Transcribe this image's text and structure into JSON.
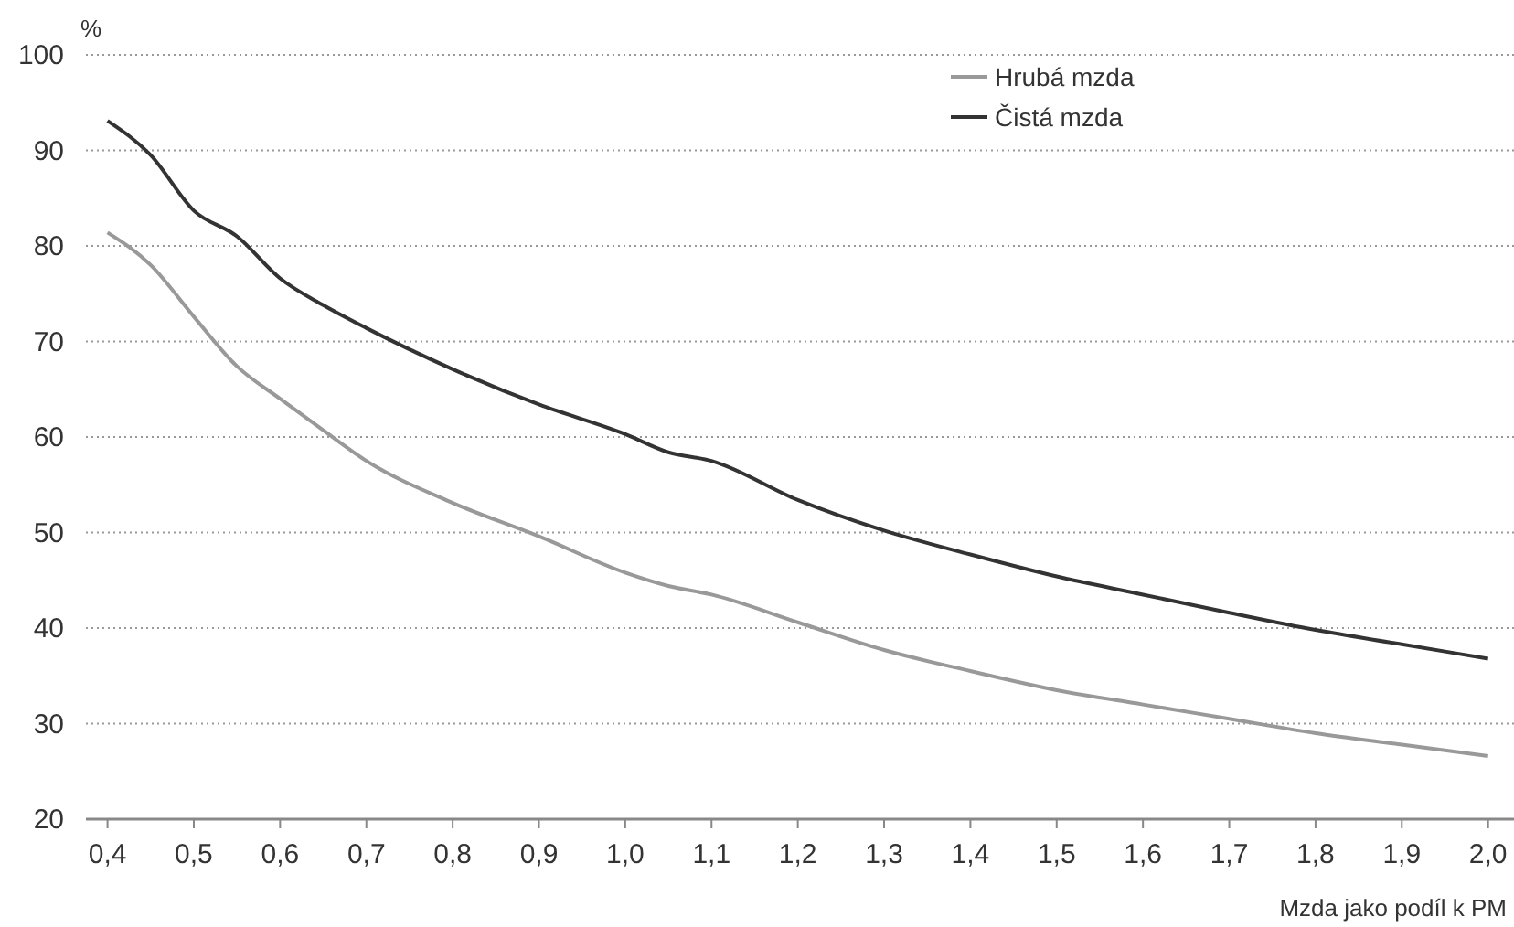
{
  "chart_data": {
    "type": "line",
    "ylabel": "%",
    "xlabel": "Mzda jako podíl k PM",
    "x": [
      0.4,
      0.45,
      0.5,
      0.55,
      0.6,
      0.65,
      0.7,
      0.8,
      0.9,
      1.0,
      1.05,
      1.1,
      1.2,
      1.3,
      1.4,
      1.5,
      1.6,
      1.7,
      1.8,
      1.9,
      2.0
    ],
    "series": [
      {
        "name": "Hrubá mzda",
        "color": "#999999",
        "values": [
          81.4,
          78,
          72.6,
          67.4,
          64,
          60.7,
          57.5,
          53.1,
          49.6,
          45.8,
          44.4,
          43.5,
          40.6,
          37.7,
          35.5,
          33.5,
          32,
          30.5,
          29,
          27.8,
          26.6
        ]
      },
      {
        "name": "Čistá mzda",
        "color": "#333333",
        "values": [
          93.1,
          89.5,
          83.7,
          81,
          76.6,
          73.8,
          71.4,
          67.1,
          63.4,
          60.3,
          58.4,
          57.5,
          53.4,
          50.2,
          47.7,
          45.4,
          43.5,
          41.6,
          39.8,
          38.3,
          36.8
        ]
      }
    ],
    "xlim": [
      0.375,
      2.03
    ],
    "xticks": [
      {
        "value": 0.4,
        "label": "0,4"
      },
      {
        "value": 0.5,
        "label": "0,5"
      },
      {
        "value": 0.6,
        "label": "0,6"
      },
      {
        "value": 0.7,
        "label": "0,7"
      },
      {
        "value": 0.8,
        "label": "0,8"
      },
      {
        "value": 0.9,
        "label": "0,9"
      },
      {
        "value": 1.0,
        "label": "1,0"
      },
      {
        "value": 1.1,
        "label": "1,1"
      },
      {
        "value": 1.2,
        "label": "1,2"
      },
      {
        "value": 1.3,
        "label": "1,3"
      },
      {
        "value": 1.4,
        "label": "1,4"
      },
      {
        "value": 1.5,
        "label": "1,5"
      },
      {
        "value": 1.6,
        "label": "1,6"
      },
      {
        "value": 1.7,
        "label": "1,7"
      },
      {
        "value": 1.8,
        "label": "1,8"
      },
      {
        "value": 1.9,
        "label": "1,9"
      },
      {
        "value": 2.0,
        "label": "2,0"
      }
    ],
    "ylim": [
      20,
      100
    ],
    "yticks": [
      20,
      30,
      40,
      50,
      60,
      70,
      80,
      90,
      100
    ],
    "grid": "y",
    "legend": "top right",
    "marker": "none",
    "line_style": "solid"
  }
}
